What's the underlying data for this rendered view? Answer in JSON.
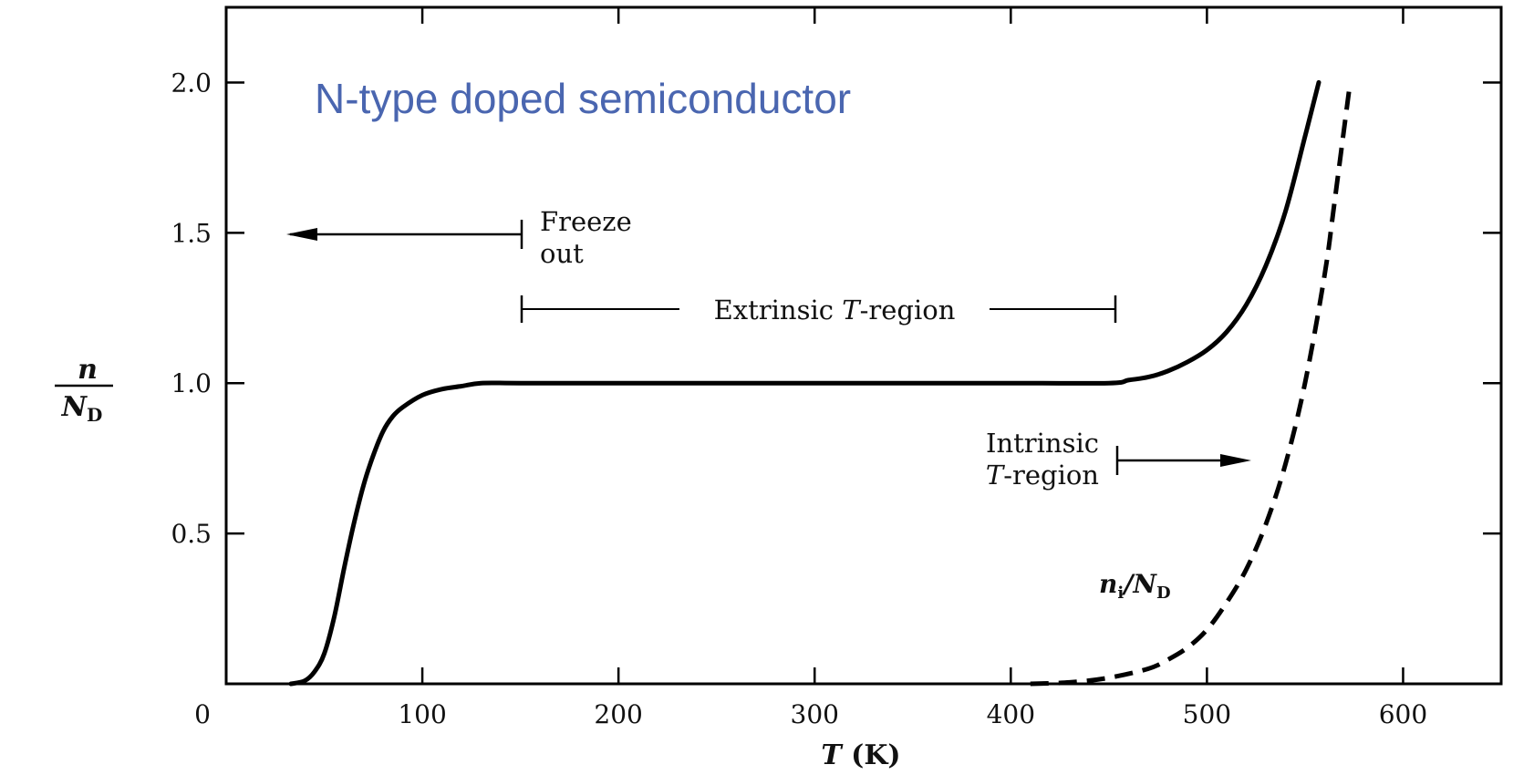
{
  "chart_data": {
    "type": "line",
    "title": "N-type doped semiconductor",
    "xlabel": "T (K)",
    "ylabel": "n / N_D",
    "ylabel_num": "n",
    "ylabel_den": "N",
    "ylabel_den_sub": "D",
    "xlabel_var": "T",
    "xlabel_unit": " (K)",
    "xlim": [
      0,
      650
    ],
    "ylim": [
      0,
      2.25
    ],
    "x_ticks": [
      0,
      100,
      200,
      300,
      400,
      500,
      600
    ],
    "x_tick_labels": [
      "0",
      "100",
      "200",
      "300",
      "400",
      "500",
      "600"
    ],
    "y_ticks": [
      0.5,
      1.0,
      1.5,
      2.0
    ],
    "y_tick_labels": [
      "0.5",
      "1.0",
      "1.5",
      "2.0"
    ],
    "grid": false,
    "series": [
      {
        "name": "",
        "style": "solid",
        "color": "#000000",
        "x": [
          33,
          40,
          45,
          50,
          55,
          60,
          65,
          70,
          75,
          80,
          85,
          90,
          100,
          110,
          120,
          130,
          150,
          200,
          300,
          400,
          450,
          460,
          470,
          480,
          490,
          500,
          510,
          520,
          530,
          540,
          550,
          557
        ],
        "y": [
          0.0,
          0.01,
          0.04,
          0.1,
          0.22,
          0.38,
          0.53,
          0.66,
          0.76,
          0.84,
          0.89,
          0.92,
          0.96,
          0.98,
          0.99,
          1.0,
          1.0,
          1.0,
          1.0,
          1.0,
          1.0,
          1.01,
          1.02,
          1.04,
          1.07,
          1.11,
          1.17,
          1.26,
          1.39,
          1.57,
          1.82,
          2.0
        ]
      },
      {
        "name": "n_i / N_D",
        "label_main": "n",
        "label_sub1": "i",
        "label_mid": "/N",
        "label_sub2": "D",
        "style": "dashed",
        "color": "#000000",
        "x": [
          410,
          430,
          450,
          470,
          480,
          490,
          500,
          510,
          520,
          530,
          540,
          550,
          560,
          565,
          573
        ],
        "y": [
          0.0,
          0.005,
          0.02,
          0.05,
          0.08,
          0.12,
          0.18,
          0.27,
          0.38,
          0.53,
          0.73,
          1.0,
          1.36,
          1.6,
          2.0
        ]
      }
    ],
    "annotations": {
      "freeze_out": [
        "Freeze",
        "out"
      ],
      "extrinsic_pre": "Extrinsic ",
      "extrinsic_var": "T",
      "extrinsic_post": "-region",
      "intrinsic_line1": "Intrinsic",
      "intrinsic_var": "T",
      "intrinsic_post": "-region"
    }
  }
}
